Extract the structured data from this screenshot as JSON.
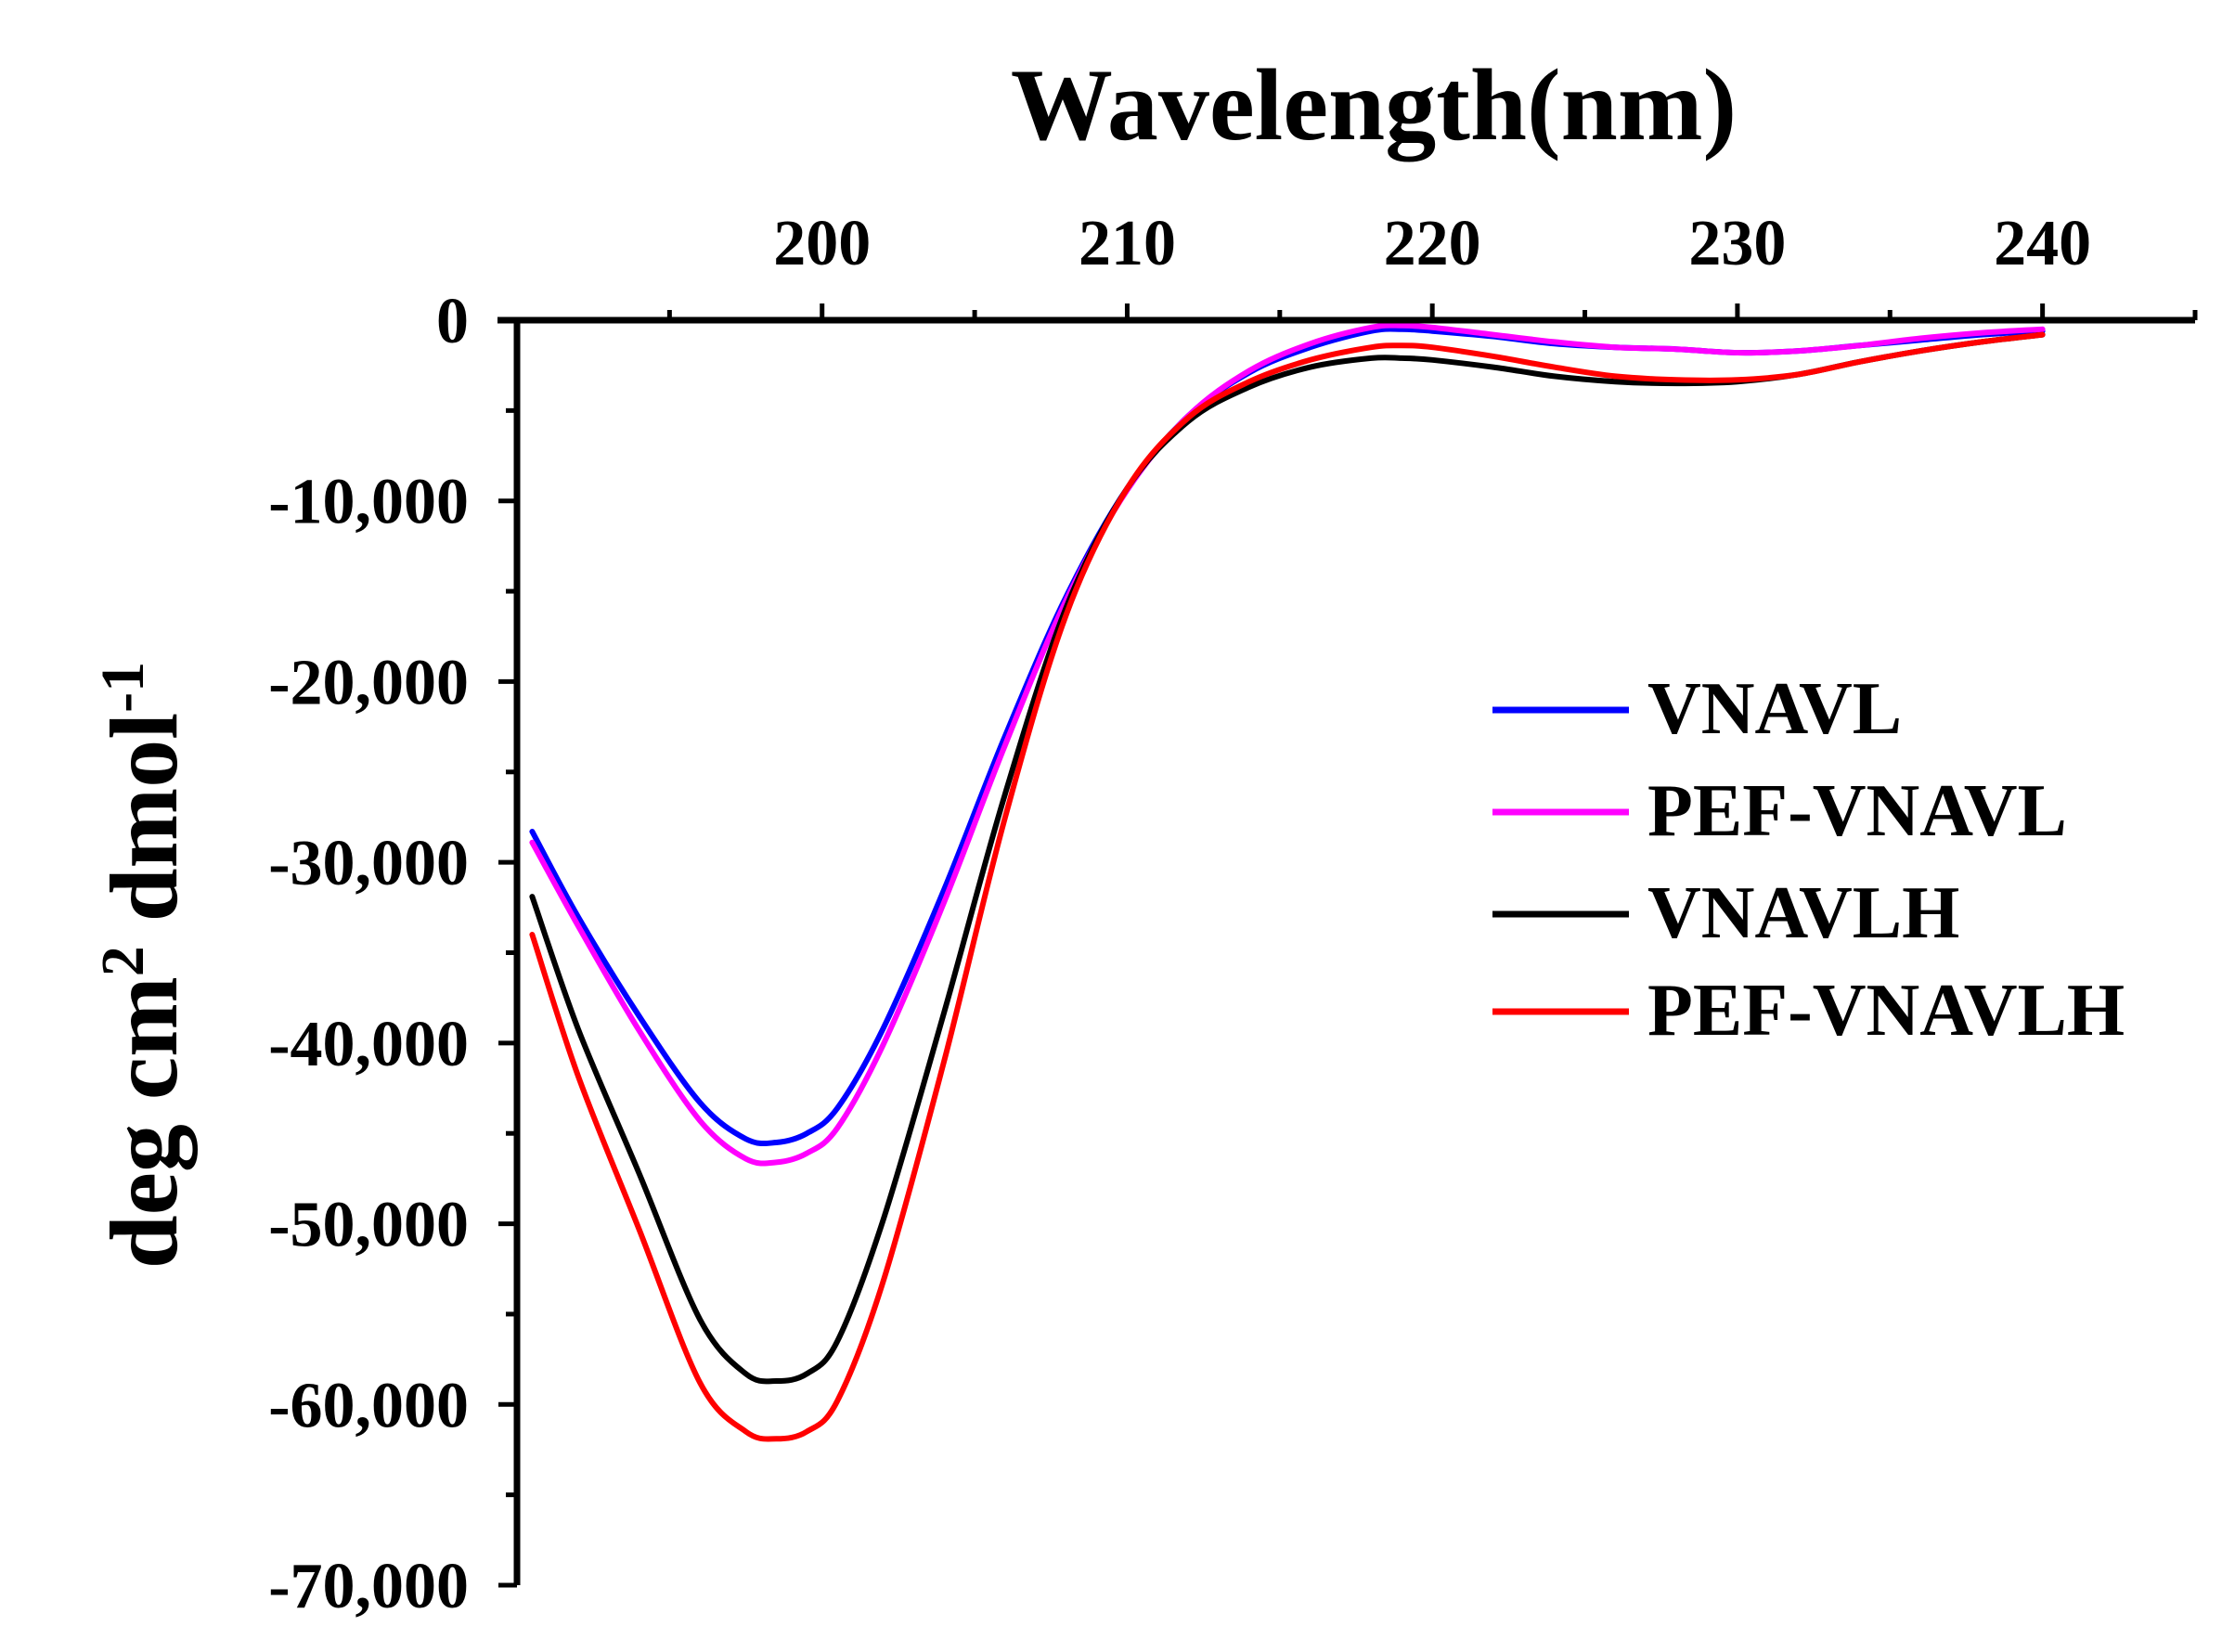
{
  "chart_data": {
    "type": "line",
    "xlabel": "Wavelength(nm)",
    "ylabel_main": "deg cm",
    "ylabel_sup1": "2",
    "ylabel_mid": " dmol",
    "ylabel_sup2": "-1",
    "xlim": [
      190,
      245
    ],
    "ylim": [
      -70000,
      0
    ],
    "x_ticks": [
      200,
      210,
      220,
      230,
      240
    ],
    "x_tick_labels": [
      "200",
      "210",
      "220",
      "230",
      "240"
    ],
    "y_ticks": [
      0,
      -10000,
      -20000,
      -30000,
      -40000,
      -50000,
      -60000,
      -70000
    ],
    "y_tick_labels": [
      "0",
      "-10,000",
      "-20,000",
      "-30,000",
      "-40,000",
      "-50,000",
      "-60,000",
      "-70,000"
    ],
    "x_axis_position": "top",
    "legend_position": "right",
    "series": [
      {
        "name": "VNAVL",
        "color": "#0000ff",
        "x": [
          190.5,
          192,
          194,
          196,
          197.5,
          198.5,
          199.5,
          200.5,
          202,
          204,
          206,
          208,
          210,
          212,
          214,
          216,
          218,
          219,
          220,
          222,
          224,
          226,
          228,
          230,
          232,
          234,
          236,
          238,
          240
        ],
        "y": [
          -28300,
          -33000,
          -38500,
          -43300,
          -45300,
          -45500,
          -45000,
          -43600,
          -39200,
          -31500,
          -23000,
          -15300,
          -9300,
          -5300,
          -2900,
          -1500,
          -600,
          -500,
          -600,
          -900,
          -1300,
          -1500,
          -1600,
          -1800,
          -1700,
          -1400,
          -1100,
          -800,
          -600
        ]
      },
      {
        "name": "PEF-VNAVL",
        "color": "#ff00ff",
        "x": [
          190.5,
          192,
          194,
          196,
          197.5,
          198.5,
          199.5,
          200.5,
          202,
          204,
          206,
          208,
          210,
          212,
          214,
          216,
          218,
          219,
          220,
          222,
          224,
          226,
          228,
          230,
          232,
          234,
          236,
          238,
          240
        ],
        "y": [
          -28900,
          -33500,
          -39300,
          -44300,
          -46400,
          -46600,
          -46100,
          -44700,
          -40100,
          -32200,
          -23500,
          -15500,
          -9400,
          -5300,
          -2800,
          -1300,
          -400,
          -300,
          -400,
          -800,
          -1200,
          -1500,
          -1600,
          -1800,
          -1700,
          -1400,
          -1000,
          -700,
          -500
        ]
      },
      {
        "name": "VNAVLH",
        "color": "#000000",
        "x": [
          190.5,
          192,
          194,
          196,
          197.5,
          198.5,
          199.5,
          200.5,
          202,
          204,
          206,
          208,
          210,
          212,
          214,
          216,
          218,
          219,
          220,
          222,
          224,
          226,
          228,
          230,
          232,
          234,
          236,
          238,
          240
        ],
        "y": [
          -31900,
          -39200,
          -47200,
          -55300,
          -58300,
          -58700,
          -58300,
          -56500,
          -49800,
          -38300,
          -26200,
          -15900,
          -9300,
          -5600,
          -3700,
          -2600,
          -2100,
          -2100,
          -2200,
          -2600,
          -3100,
          -3400,
          -3500,
          -3400,
          -3000,
          -2300,
          -1700,
          -1200,
          -800
        ]
      },
      {
        "name": "PEF-VNAVLH",
        "color": "#ff0000",
        "x": [
          190.5,
          192,
          194,
          196,
          197.5,
          198.5,
          199.5,
          200.5,
          202,
          204,
          206,
          208,
          210,
          212,
          214,
          216,
          218,
          219,
          220,
          222,
          224,
          226,
          228,
          230,
          232,
          234,
          236,
          238,
          240
        ],
        "y": [
          -34000,
          -41800,
          -50300,
          -58800,
          -61500,
          -61900,
          -61500,
          -59800,
          -53200,
          -41000,
          -27500,
          -16300,
          -9300,
          -5400,
          -3400,
          -2200,
          -1500,
          -1400,
          -1500,
          -2000,
          -2600,
          -3100,
          -3300,
          -3300,
          -3000,
          -2300,
          -1700,
          -1200,
          -800
        ]
      }
    ]
  }
}
